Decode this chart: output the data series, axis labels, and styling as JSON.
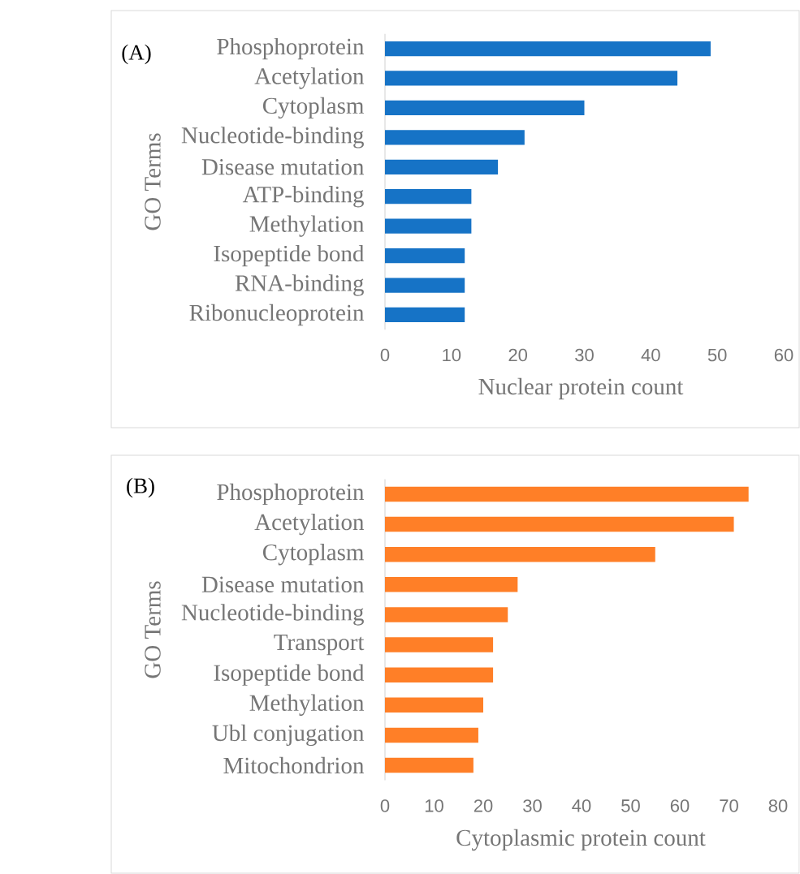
{
  "chart_data": [
    {
      "type": "bar",
      "orientation": "horizontal",
      "title": "(A)",
      "xlabel": "Nuclear protein count",
      "ylabel": "GO Terms",
      "categories": [
        "Phosphoprotein",
        "Acetylation",
        "Cytoplasm",
        "Nucleotide-binding",
        "Disease mutation",
        "ATP-binding",
        "Methylation",
        "Isopeptide bond",
        "RNA-binding",
        "Ribonucleoprotein"
      ],
      "values": [
        49,
        44,
        30,
        21,
        17,
        13,
        13,
        12,
        12,
        12
      ],
      "color": "#1673c6",
      "xlim": [
        0,
        60
      ],
      "xticks": [
        0,
        10,
        20,
        30,
        40,
        50,
        60
      ]
    },
    {
      "type": "bar",
      "orientation": "horizontal",
      "title": "(B)",
      "xlabel": "Cytoplasmic protein count",
      "ylabel": "GO Terms",
      "categories": [
        "Phosphoprotein",
        "Acetylation",
        "Cytoplasm",
        "Disease mutation",
        "Nucleotide-binding",
        "Transport",
        "Isopeptide bond",
        "Methylation",
        "Ubl conjugation",
        "Mitochondrion"
      ],
      "values": [
        74,
        71,
        55,
        27,
        25,
        22,
        22,
        20,
        19,
        18
      ],
      "color": "#ff7f27",
      "xlim": [
        0,
        80
      ],
      "xticks": [
        0,
        10,
        20,
        30,
        40,
        50,
        60,
        70,
        80
      ]
    }
  ]
}
